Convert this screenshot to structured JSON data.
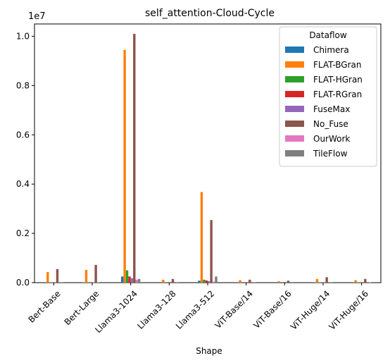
{
  "chart_data": {
    "type": "bar",
    "title": "self_attention-Cloud-Cycle",
    "xlabel": "Shape",
    "ylabel": "",
    "scale_label": "1e7",
    "ylim": [
      0,
      10500000
    ],
    "yticks": [
      0,
      2000000,
      4000000,
      6000000,
      8000000,
      10000000
    ],
    "ytick_labels": [
      "0.0",
      "0.2",
      "0.4",
      "0.6",
      "0.8",
      "1.0"
    ],
    "categories": [
      "Bert-Base",
      "Bert-Large",
      "Llama3-1024",
      "Llama3-128",
      "Llama3-512",
      "ViT-Base/14",
      "ViT-Base/16",
      "ViT-Huge/14",
      "ViT-Huge/16"
    ],
    "legend": {
      "title": "Dataflow",
      "placement": "top-right"
    },
    "grid": false,
    "series": [
      {
        "name": "Chimera",
        "color": "#1f77b4",
        "values": [
          5000,
          10000,
          250000,
          3000,
          80000,
          3000,
          2000,
          8000,
          5000
        ]
      },
      {
        "name": "FLAT-BGran",
        "color": "#ff7f0e",
        "values": [
          430000,
          520000,
          9450000,
          120000,
          3680000,
          100000,
          60000,
          150000,
          100000
        ]
      },
      {
        "name": "FLAT-HGran",
        "color": "#2ca02c",
        "values": [
          10000,
          20000,
          500000,
          5000,
          120000,
          5000,
          3000,
          10000,
          8000
        ]
      },
      {
        "name": "FLAT-RGran",
        "color": "#d62728",
        "values": [
          10000,
          20000,
          250000,
          5000,
          90000,
          5000,
          3000,
          10000,
          8000
        ]
      },
      {
        "name": "FuseMax",
        "color": "#9467bd",
        "values": [
          8000,
          15000,
          180000,
          4000,
          60000,
          4000,
          2000,
          8000,
          6000
        ]
      },
      {
        "name": "No_Fuse",
        "color": "#8c564b",
        "values": [
          550000,
          720000,
          10100000,
          150000,
          2540000,
          120000,
          80000,
          220000,
          150000
        ]
      },
      {
        "name": "OurWork",
        "color": "#e377c2",
        "values": [
          5000,
          10000,
          120000,
          3000,
          40000,
          3000,
          2000,
          5000,
          4000
        ]
      },
      {
        "name": "TileFlow",
        "color": "#7f7f7f",
        "values": [
          20000,
          30000,
          150000,
          10000,
          250000,
          10000,
          5000,
          20000,
          15000
        ]
      }
    ]
  }
}
